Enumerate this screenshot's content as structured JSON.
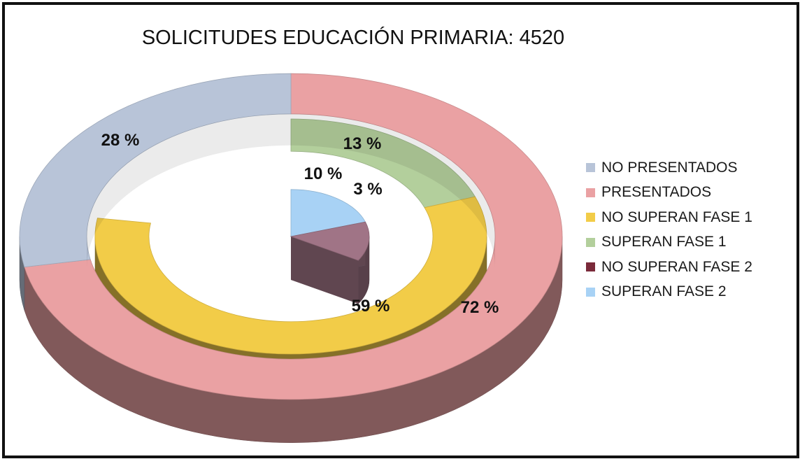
{
  "chart_data": {
    "type": "pie",
    "subtype": "3d-nested-donut",
    "title": "SOLICITUDES EDUCACIÓN PRIMARIA: 4520",
    "legend_position": "right",
    "rings": [
      {
        "name": "outer",
        "slices": [
          {
            "label": "NO PRESENTADOS",
            "value": 28,
            "display": "28 %",
            "color": "#b8c4d8"
          },
          {
            "label": "PRESENTADOS",
            "value": 72,
            "display": "72 %",
            "color": "#eaa1a3"
          }
        ]
      },
      {
        "name": "inner",
        "slices": [
          {
            "label": "SUPERAN FASE 1",
            "value": 13,
            "display": "13 %",
            "color": "#b3cf9c"
          },
          {
            "label": "NO SUPERAN FASE 1",
            "value": 59,
            "display": "59 %",
            "color": "#f2cc48"
          }
        ]
      },
      {
        "name": "core",
        "slices": [
          {
            "label": "NO SUPERAN FASE 2",
            "value": 3,
            "display": "3 %",
            "color": "#a07486"
          },
          {
            "label": "SUPERAN FASE 2",
            "value": 10,
            "display": "10 %",
            "color": "#a8d2f5"
          }
        ]
      }
    ],
    "legend": [
      {
        "label": "NO PRESENTADOS",
        "color": "#b8c4d8"
      },
      {
        "label": "PRESENTADOS",
        "color": "#eaa1a3"
      },
      {
        "label": "NO SUPERAN FASE 1",
        "color": "#f2cc48"
      },
      {
        "label": "SUPERAN FASE 1",
        "color": "#b3cf9c"
      },
      {
        "label": "NO SUPERAN FASE 2",
        "color": "#7a2a3a"
      },
      {
        "label": "SUPERAN FASE 2",
        "color": "#a8d2f5"
      }
    ]
  }
}
